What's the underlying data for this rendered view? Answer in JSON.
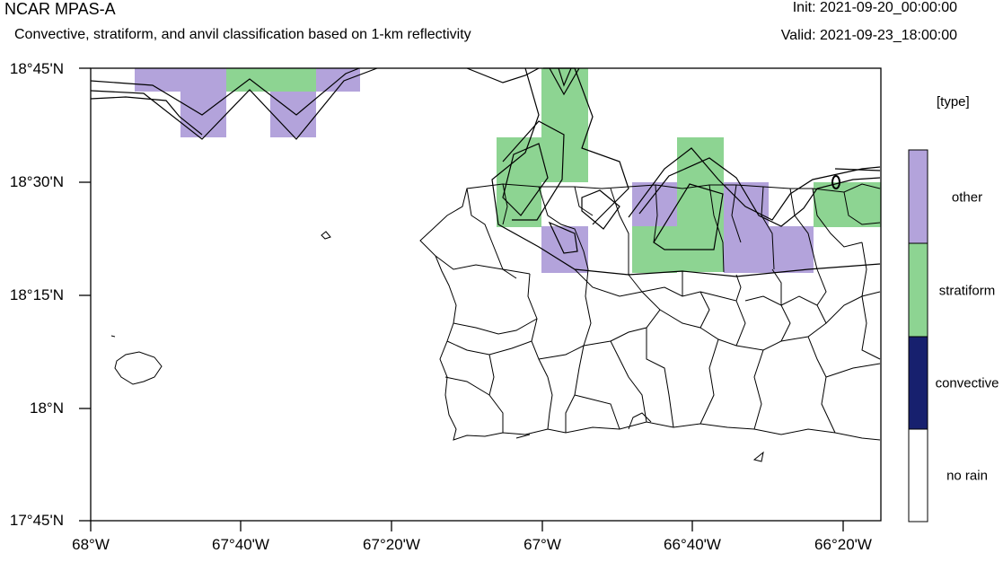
{
  "header": {
    "title": "NCAR MPAS-A",
    "subtitle": "Convective, stratiform, and anvil classification based on 1-km reflectivity",
    "init": "Init: 2021-09-20_00:00:00",
    "valid": "Valid: 2021-09-23_18:00:00"
  },
  "map": {
    "lat_labels": [
      "18°45'N",
      "18°30'N",
      "18°15'N",
      "18°N",
      "17°45'N"
    ],
    "lon_labels": [
      "68°W",
      "67°40'W",
      "67°20'W",
      "67°W",
      "66°40'W",
      "66°20'W"
    ],
    "categories": {
      "other": "#b3a3db",
      "stratiform": "#8dd492"
    }
  },
  "legend": {
    "units": "[type]",
    "items": [
      {
        "label": "other",
        "color": "#b3a3db"
      },
      {
        "label": "stratiform",
        "color": "#8dd492"
      },
      {
        "label": "convective",
        "color": "#17206e"
      },
      {
        "label": "no rain",
        "color": "#ffffff"
      }
    ]
  }
}
